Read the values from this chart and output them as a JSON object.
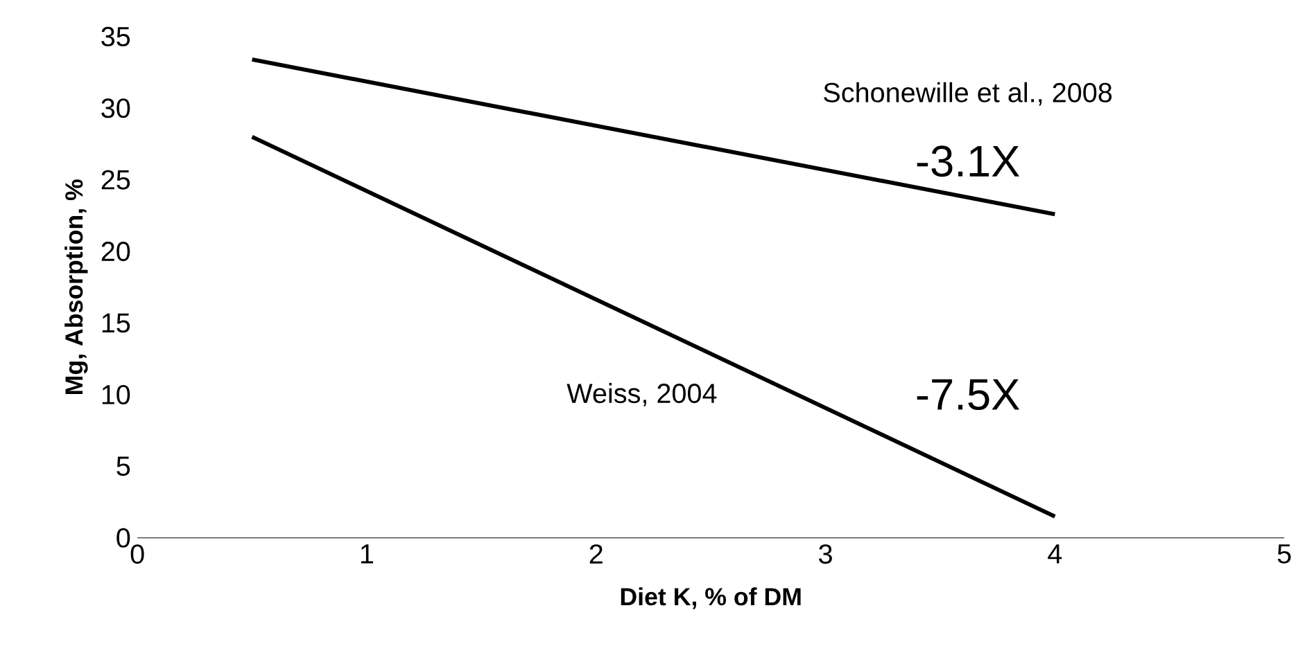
{
  "chart_data": {
    "type": "line",
    "xlabel": "Diet K, % of DM",
    "ylabel": "Mg, Absorption, %",
    "x": [
      0.5,
      4
    ],
    "series": [
      {
        "name": "Schonewille et al., 2008",
        "color": "#000000",
        "values": [
          33.4,
          22.6
        ]
      },
      {
        "name": "Weiss, 2004",
        "color": "#000000",
        "values": [
          28,
          1.5
        ]
      }
    ],
    "annotations": [
      "-3.1X",
      "-7.5X"
    ],
    "xlim": [
      0,
      5
    ],
    "xticks": [
      0,
      1,
      2,
      3,
      4,
      5
    ],
    "ylim": [
      0,
      35
    ],
    "yticks": [
      0,
      5,
      10,
      15,
      20,
      25,
      30,
      35
    ],
    "grid": false,
    "legend": false,
    "marker": "none",
    "line_style": "solid"
  }
}
